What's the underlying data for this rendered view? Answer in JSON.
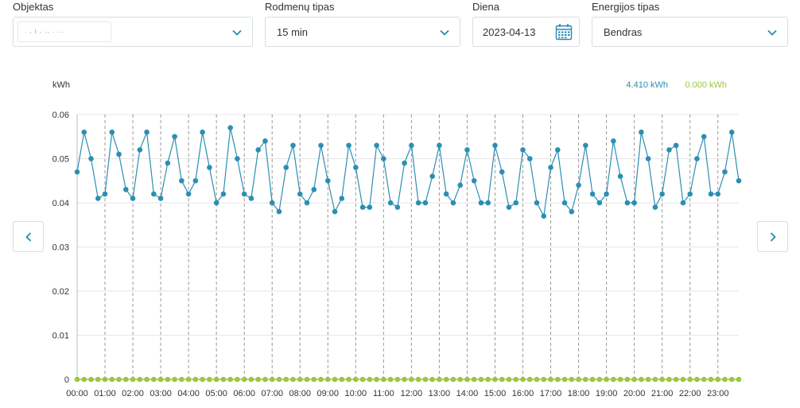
{
  "filters": {
    "objektas": {
      "label": "Objektas",
      "value": ". ,  j  ,  ., . ..."
    },
    "rodmenu_tipas": {
      "label": "Rodmenų tipas",
      "value": "15 min"
    },
    "diena": {
      "label": "Diena",
      "value": "2023-04-13"
    },
    "energijos_tipas": {
      "label": "Energijos tipas",
      "value": "Bendras"
    }
  },
  "icons": {
    "dropdown": "chevron-down-icon",
    "calendar": "calendar-icon",
    "prev": "chevron-left-icon",
    "next": "chevron-right-icon"
  },
  "colors": {
    "accent": "#2489b8",
    "series1": "#2b8fb3",
    "series2": "#9bc73c"
  },
  "chart_data": {
    "type": "line",
    "ylabel": "kWh",
    "ylim": [
      0,
      0.06
    ],
    "yticks": [
      "0",
      "0.01",
      "0.02",
      "0.03",
      "0.04",
      "0.05",
      "0.06"
    ],
    "xticks": [
      "00:00",
      "01:00",
      "02:00",
      "03:00",
      "04:00",
      "05:00",
      "06:00",
      "07:00",
      "08:00",
      "09:00",
      "10:00",
      "11:00",
      "12:00",
      "13:00",
      "14:00",
      "15:00",
      "16:00",
      "17:00",
      "18:00",
      "19:00",
      "20:00",
      "21:00",
      "22:00",
      "23:00"
    ],
    "grid": true,
    "legend_position": "top-right",
    "series": [
      {
        "total": "4.410 kWh",
        "color": "#2b8fb3",
        "values": [
          0.047,
          0.056,
          0.05,
          0.041,
          0.042,
          0.056,
          0.051,
          0.043,
          0.041,
          0.052,
          0.056,
          0.042,
          0.041,
          0.049,
          0.055,
          0.045,
          0.042,
          0.045,
          0.056,
          0.048,
          0.04,
          0.042,
          0.057,
          0.05,
          0.042,
          0.041,
          0.052,
          0.054,
          0.04,
          0.038,
          0.048,
          0.053,
          0.042,
          0.04,
          0.043,
          0.053,
          0.045,
          0.038,
          0.041,
          0.053,
          0.048,
          0.039,
          0.039,
          0.053,
          0.05,
          0.04,
          0.039,
          0.049,
          0.053,
          0.04,
          0.04,
          0.046,
          0.053,
          0.042,
          0.04,
          0.044,
          0.052,
          0.045,
          0.04,
          0.04,
          0.053,
          0.047,
          0.039,
          0.04,
          0.052,
          0.05,
          0.04,
          0.037,
          0.048,
          0.052,
          0.04,
          0.038,
          0.044,
          0.053,
          0.042,
          0.04,
          0.042,
          0.054,
          0.046,
          0.04,
          0.04,
          0.056,
          0.05,
          0.039,
          0.042,
          0.052,
          0.053,
          0.04,
          0.042,
          0.05,
          0.055,
          0.042,
          0.042,
          0.047,
          0.056,
          0.045
        ]
      },
      {
        "total": "0.000 kWh",
        "color": "#9bc73c",
        "values": [
          0,
          0,
          0,
          0,
          0,
          0,
          0,
          0,
          0,
          0,
          0,
          0,
          0,
          0,
          0,
          0,
          0,
          0,
          0,
          0,
          0,
          0,
          0,
          0,
          0,
          0,
          0,
          0,
          0,
          0,
          0,
          0,
          0,
          0,
          0,
          0,
          0,
          0,
          0,
          0,
          0,
          0,
          0,
          0,
          0,
          0,
          0,
          0,
          0,
          0,
          0,
          0,
          0,
          0,
          0,
          0,
          0,
          0,
          0,
          0,
          0,
          0,
          0,
          0,
          0,
          0,
          0,
          0,
          0,
          0,
          0,
          0,
          0,
          0,
          0,
          0,
          0,
          0,
          0,
          0,
          0,
          0,
          0,
          0,
          0,
          0,
          0,
          0,
          0,
          0,
          0,
          0,
          0,
          0,
          0,
          0
        ]
      }
    ]
  }
}
